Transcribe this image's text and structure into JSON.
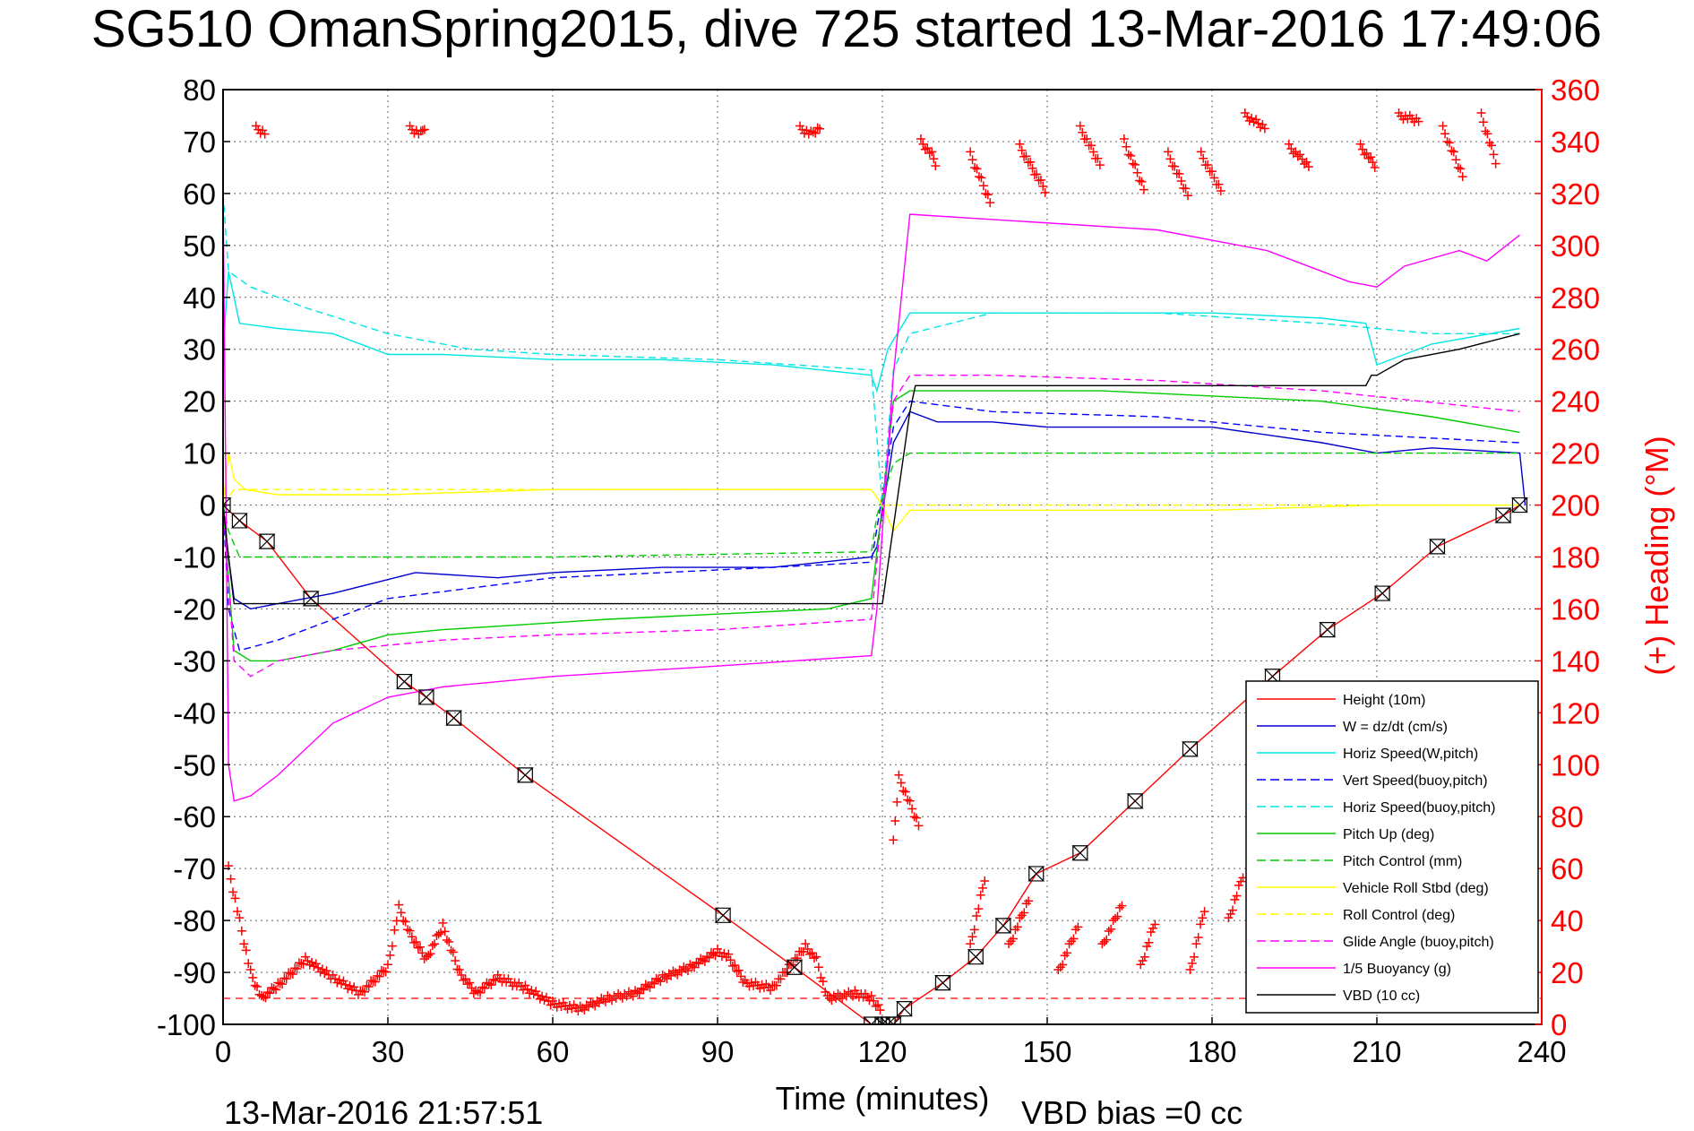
{
  "chart_data": {
    "type": "line",
    "title": "SG510 OmanSpring2015, dive 725 started 13-Mar-2016 17:49:06",
    "xlabel": "Time (minutes)",
    "ylabel": "",
    "y2label": "(+) Heading (°M)",
    "xlim": [
      0,
      240
    ],
    "ylim": [
      -100,
      80
    ],
    "y2lim": [
      0,
      360
    ],
    "xticks": [
      "0",
      "30",
      "60",
      "90",
      "120",
      "150",
      "180",
      "210",
      "240"
    ],
    "yticks": [
      "80",
      "70",
      "60",
      "50",
      "40",
      "30",
      "20",
      "10",
      "0",
      "-10",
      "-20",
      "-30",
      "-40",
      "-50",
      "-60",
      "-70",
      "-80",
      "-90",
      "-100"
    ],
    "y2ticks": [
      "360",
      "340",
      "320",
      "300",
      "280",
      "260",
      "240",
      "220",
      "200",
      "180",
      "160",
      "140",
      "120",
      "100",
      "80",
      "60",
      "40",
      "20",
      "0"
    ],
    "grid": true,
    "legend_position": "bottom-right",
    "footer_timestamp": "13-Mar-2016 21:57:51",
    "footer_vbd": "VBD bias =0 cc",
    "series": [
      {
        "name": "Height (10m)",
        "color": "#ff0000",
        "style": "solid",
        "x": [
          0,
          3,
          8,
          16,
          33,
          37,
          42,
          55,
          91,
          104,
          118,
          120,
          121,
          122,
          124,
          131,
          137,
          142,
          148,
          156,
          166,
          176,
          191,
          201,
          211,
          221,
          233,
          236
        ],
        "y": [
          0,
          -3,
          -7,
          -18,
          -34,
          -37,
          -41,
          -52,
          -79,
          -89,
          -100,
          -100,
          -100,
          -100,
          -97,
          -92,
          -87,
          -81,
          -71,
          -67,
          -57,
          -47,
          -33,
          -24,
          -17,
          -8,
          -2,
          0
        ]
      },
      {
        "name": "W = dz/dt (cm/s)",
        "color": "#0000cc",
        "style": "solid",
        "x": [
          0,
          1,
          2,
          5,
          10,
          20,
          35,
          50,
          60,
          80,
          100,
          118,
          119,
          122,
          125,
          130,
          140,
          150,
          160,
          180,
          200,
          210,
          220,
          236,
          237
        ],
        "y": [
          0,
          -10,
          -18,
          -20,
          -19,
          -17,
          -13,
          -14,
          -13,
          -12,
          -12,
          -10,
          -8,
          12,
          18,
          16,
          16,
          15,
          15,
          15,
          12,
          10,
          11,
          10,
          0
        ]
      },
      {
        "name": "Horiz Speed(W,pitch)",
        "color": "#00e5e5",
        "style": "solid",
        "x": [
          0,
          1,
          3,
          10,
          20,
          30,
          40,
          60,
          80,
          100,
          118,
          119,
          121,
          125,
          140,
          160,
          180,
          200,
          208,
          210,
          220,
          236
        ],
        "y": [
          30,
          45,
          35,
          34,
          33,
          29,
          29,
          28,
          28,
          27,
          25,
          22,
          30,
          37,
          37,
          37,
          37,
          36,
          35,
          27,
          31,
          34
        ]
      },
      {
        "name": "Vert Speed(buoy,pitch)",
        "color": "#0000ff",
        "style": "dashed",
        "x": [
          0,
          1,
          3,
          10,
          30,
          60,
          100,
          118,
          122,
          125,
          140,
          170,
          200,
          236
        ],
        "y": [
          0,
          -20,
          -28,
          -26,
          -18,
          -14,
          -12,
          -11,
          15,
          20,
          18,
          17,
          14,
          12
        ]
      },
      {
        "name": "Horiz Speed(buoy,pitch)",
        "color": "#00e5e5",
        "style": "dashed",
        "x": [
          0,
          1,
          5,
          15,
          30,
          45,
          60,
          90,
          118,
          120,
          122,
          125,
          140,
          170,
          200,
          220,
          236
        ],
        "y": [
          60,
          45,
          42,
          38,
          33,
          30,
          29,
          28,
          26,
          0,
          26,
          33,
          37,
          37,
          35,
          33,
          33
        ]
      },
      {
        "name": "Pitch Up (deg)",
        "color": "#00cc00",
        "style": "solid",
        "x": [
          0,
          2,
          5,
          10,
          20,
          30,
          40,
          55,
          70,
          90,
          110,
          118,
          120,
          122,
          125,
          140,
          160,
          180,
          200,
          220,
          236
        ],
        "y": [
          0,
          -28,
          -30,
          -30,
          -28,
          -25,
          -24,
          -23,
          -22,
          -21,
          -20,
          -18,
          0,
          20,
          22,
          22,
          22,
          21,
          20,
          17,
          14
        ]
      },
      {
        "name": "Pitch Control (mm)",
        "color": "#00cc00",
        "style": "dashed",
        "x": [
          0,
          1,
          3,
          10,
          60,
          118,
          119,
          122,
          125,
          140,
          236
        ],
        "y": [
          0,
          -5,
          -10,
          -10,
          -10,
          -9,
          -2,
          8,
          10,
          10,
          10
        ]
      },
      {
        "name": "Vehicle Roll Stbd (deg)",
        "color": "#ffff00",
        "style": "solid",
        "x": [
          0,
          1,
          2,
          4,
          10,
          30,
          60,
          90,
          118,
          120,
          122,
          125,
          140,
          180,
          210,
          236
        ],
        "y": [
          0,
          10,
          5,
          3,
          2,
          2,
          3,
          3,
          3,
          0,
          -5,
          -1,
          -1,
          -1,
          0,
          0
        ]
      },
      {
        "name": "Roll Control (deg)",
        "color": "#ffff00",
        "style": "dashed",
        "x": [
          0,
          2,
          5,
          118,
          120,
          236
        ],
        "y": [
          0,
          3,
          3,
          3,
          0,
          0
        ]
      },
      {
        "name": "Glide Angle (buoy,pitch)",
        "color": "#ff00ff",
        "style": "dashed",
        "x": [
          0,
          2,
          5,
          10,
          20,
          30,
          40,
          60,
          90,
          118,
          120,
          122,
          125,
          140,
          170,
          200,
          236
        ],
        "y": [
          0,
          -30,
          -33,
          -30,
          -28,
          -27,
          -26,
          -25,
          -24,
          -22,
          0,
          20,
          25,
          25,
          24,
          22,
          18
        ]
      },
      {
        "name": "1/5 Buoyancy (g)",
        "color": "#ff00ff",
        "style": "solid",
        "x": [
          0,
          1,
          2,
          5,
          10,
          20,
          30,
          40,
          60,
          90,
          118,
          119,
          122,
          125,
          140,
          170,
          190,
          205,
          210,
          215,
          225,
          230,
          236
        ],
        "y": [
          60,
          -50,
          -57,
          -56,
          -52,
          -42,
          -37,
          -35,
          -33,
          -31,
          -29,
          -20,
          25,
          56,
          55,
          53,
          49,
          43,
          42,
          46,
          49,
          47,
          52
        ]
      },
      {
        "name": "VBD (10 cc)",
        "color": "#000000",
        "style": "solid",
        "x": [
          0,
          1,
          2,
          120,
          125,
          126,
          208,
          209,
          210,
          215,
          225,
          236
        ],
        "y": [
          0,
          -10,
          -19,
          -19,
          18,
          23,
          23,
          25,
          25,
          28,
          30,
          33
        ]
      }
    ],
    "heading": {
      "name": "Heading (deg M)",
      "color": "#ff0000",
      "marker": "+",
      "axis": "right",
      "segments": [
        [
          [
            1,
            60
          ],
          [
            3,
            40
          ],
          [
            5,
            20
          ],
          [
            7,
            10
          ],
          [
            10,
            15
          ],
          [
            15,
            25
          ],
          [
            20,
            18
          ],
          [
            25,
            12
          ],
          [
            30,
            22
          ],
          [
            32,
            45
          ],
          [
            34,
            35
          ],
          [
            37,
            25
          ],
          [
            40,
            38
          ],
          [
            43,
            20
          ],
          [
            46,
            12
          ],
          [
            50,
            18
          ],
          [
            55,
            14
          ],
          [
            60,
            8
          ],
          [
            65,
            6
          ],
          [
            70,
            10
          ],
          [
            75,
            12
          ],
          [
            80,
            18
          ],
          [
            85,
            22
          ],
          [
            90,
            28
          ],
          [
            92,
            26
          ],
          [
            95,
            16
          ],
          [
            100,
            14
          ],
          [
            103,
            22
          ],
          [
            106,
            30
          ],
          [
            108,
            25
          ],
          [
            110,
            10
          ],
          [
            115,
            12
          ],
          [
            118,
            10
          ],
          [
            120,
            5
          ]
        ],
        [
          [
            122,
            70
          ],
          [
            123,
            95
          ],
          [
            125,
            85
          ],
          [
            127,
            75
          ]
        ],
        [
          [
            136,
            30
          ],
          [
            139,
            60
          ]
        ],
        [
          [
            143,
            30
          ],
          [
            147,
            50
          ]
        ],
        [
          [
            152,
            20
          ],
          [
            156,
            40
          ]
        ],
        [
          [
            160,
            30
          ],
          [
            164,
            48
          ]
        ],
        [
          [
            167,
            22
          ],
          [
            170,
            42
          ]
        ],
        [
          [
            176,
            20
          ],
          [
            179,
            48
          ]
        ],
        [
          [
            183,
            40
          ],
          [
            186,
            60
          ]
        ],
        [
          [
            196,
            25
          ],
          [
            198,
            35
          ]
        ],
        [
          [
            200,
            35
          ],
          [
            204,
            52
          ]
        ],
        [
          [
            213,
            30
          ],
          [
            216,
            45
          ]
        ],
        [
          [
            223,
            30
          ],
          [
            227,
            55
          ]
        ],
        [
          [
            230,
            35
          ],
          [
            233,
            48
          ]
        ],
        [
          [
            6,
            345
          ],
          [
            8,
            343
          ]
        ],
        [
          [
            34,
            345
          ],
          [
            36,
            343
          ],
          [
            37,
            347
          ]
        ],
        [
          [
            105,
            345
          ],
          [
            107,
            343
          ],
          [
            109,
            346
          ]
        ],
        [
          [
            127,
            340
          ],
          [
            129,
            335
          ],
          [
            130,
            330
          ]
        ],
        [
          [
            136,
            335
          ],
          [
            140,
            315
          ]
        ],
        [
          [
            145,
            338
          ],
          [
            150,
            320
          ]
        ],
        [
          [
            156,
            345
          ],
          [
            160,
            330
          ]
        ],
        [
          [
            164,
            340
          ],
          [
            168,
            320
          ]
        ],
        [
          [
            172,
            335
          ],
          [
            176,
            318
          ]
        ],
        [
          [
            178,
            335
          ],
          [
            182,
            320
          ]
        ],
        [
          [
            186,
            350
          ],
          [
            190,
            345
          ]
        ],
        [
          [
            194,
            338
          ],
          [
            198,
            330
          ]
        ],
        [
          [
            207,
            338
          ],
          [
            210,
            330
          ]
        ],
        [
          [
            214,
            350
          ],
          [
            218,
            348
          ]
        ],
        [
          [
            222,
            345
          ],
          [
            226,
            325
          ]
        ],
        [
          [
            229,
            350
          ],
          [
            232,
            330
          ]
        ]
      ]
    },
    "dashed_reference": {
      "color": "#ff0000",
      "y": -95
    }
  }
}
